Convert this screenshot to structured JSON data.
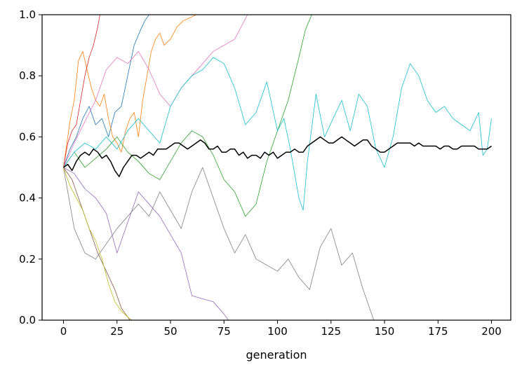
{
  "chart_data": {
    "type": "line",
    "title": "",
    "xlabel": "generation",
    "ylabel": "",
    "xlim": [
      -10,
      209
    ],
    "ylim": [
      0,
      1.0
    ],
    "grid": false,
    "legend": "none",
    "x_ticks": [
      0,
      25,
      50,
      75,
      100,
      125,
      150,
      175,
      200
    ],
    "y_ticks": [
      0.0,
      0.2,
      0.4,
      0.6,
      0.8,
      1.0
    ],
    "x_tick_labels": [
      "0",
      "25",
      "50",
      "75",
      "100",
      "125",
      "150",
      "175",
      "200"
    ],
    "y_tick_labels": [
      "0.0",
      "0.2",
      "0.4",
      "0.6",
      "0.8",
      "1.0"
    ],
    "series": [
      {
        "color": "#1f77b4",
        "x": [
          0,
          3,
          6,
          9,
          12,
          15,
          18,
          21,
          24,
          27,
          30,
          33,
          36,
          38,
          40
        ],
        "y": [
          0.5,
          0.56,
          0.6,
          0.66,
          0.7,
          0.64,
          0.66,
          0.6,
          0.68,
          0.7,
          0.8,
          0.9,
          0.95,
          0.98,
          1.0
        ]
      },
      {
        "color": "#ff7f0e",
        "x": [
          0,
          3,
          5,
          7,
          9,
          11,
          13,
          15,
          17,
          19,
          21,
          23,
          25,
          27,
          29,
          31,
          33,
          35,
          37,
          39,
          41,
          43,
          45,
          47,
          50,
          53,
          56,
          59,
          62,
          65,
          66
        ],
        "y": [
          0.5,
          0.65,
          0.72,
          0.85,
          0.88,
          0.82,
          0.76,
          0.72,
          0.7,
          0.74,
          0.66,
          0.6,
          0.58,
          0.55,
          0.62,
          0.66,
          0.68,
          0.6,
          0.72,
          0.8,
          0.88,
          0.92,
          0.94,
          0.9,
          0.92,
          0.96,
          0.98,
          0.99,
          1.0,
          1.0,
          1.0
        ]
      },
      {
        "color": "#2ca02c",
        "x": [
          0,
          5,
          10,
          15,
          20,
          25,
          30,
          35,
          40,
          45,
          50,
          55,
          60,
          65,
          70,
          75,
          80,
          85,
          90,
          95,
          100,
          105,
          110,
          113,
          116
        ],
        "y": [
          0.5,
          0.55,
          0.5,
          0.53,
          0.56,
          0.6,
          0.55,
          0.52,
          0.48,
          0.46,
          0.52,
          0.58,
          0.62,
          0.6,
          0.54,
          0.46,
          0.42,
          0.34,
          0.38,
          0.52,
          0.62,
          0.72,
          0.86,
          0.95,
          1.0
        ]
      },
      {
        "color": "#d62728",
        "x": [
          0,
          2,
          4,
          6,
          8,
          10,
          12,
          14,
          16,
          17
        ],
        "y": [
          0.5,
          0.58,
          0.62,
          0.64,
          0.72,
          0.8,
          0.86,
          0.9,
          0.96,
          1.0
        ]
      },
      {
        "color": "#9467bd",
        "x": [
          0,
          5,
          10,
          15,
          20,
          25,
          30,
          35,
          40,
          45,
          50,
          55,
          60,
          65,
          70,
          75,
          77
        ],
        "y": [
          0.5,
          0.48,
          0.43,
          0.4,
          0.35,
          0.22,
          0.32,
          0.42,
          0.38,
          0.34,
          0.28,
          0.22,
          0.08,
          0.07,
          0.06,
          0.02,
          0.0
        ]
      },
      {
        "color": "#8c564b",
        "x": [
          0,
          4,
          8,
          12,
          16,
          20,
          24,
          27,
          29,
          31
        ],
        "y": [
          0.5,
          0.46,
          0.38,
          0.3,
          0.22,
          0.16,
          0.1,
          0.04,
          0.02,
          0.0
        ]
      },
      {
        "color": "#e377c2",
        "x": [
          0,
          5,
          10,
          15,
          20,
          25,
          30,
          35,
          40,
          45,
          50,
          55,
          60,
          65,
          70,
          75,
          80,
          83,
          86
        ],
        "y": [
          0.5,
          0.58,
          0.65,
          0.72,
          0.82,
          0.86,
          0.84,
          0.88,
          0.82,
          0.74,
          0.7,
          0.76,
          0.8,
          0.84,
          0.88,
          0.9,
          0.92,
          0.96,
          1.0
        ]
      },
      {
        "color": "#7f7f7f",
        "x": [
          0,
          5,
          10,
          15,
          20,
          25,
          30,
          35,
          40,
          45,
          50,
          55,
          60,
          65,
          70,
          75,
          80,
          85,
          90,
          95,
          100,
          105,
          110,
          115,
          120,
          125,
          130,
          135,
          140,
          145
        ],
        "y": [
          0.5,
          0.3,
          0.22,
          0.2,
          0.25,
          0.3,
          0.34,
          0.38,
          0.34,
          0.42,
          0.36,
          0.3,
          0.42,
          0.5,
          0.4,
          0.3,
          0.22,
          0.28,
          0.2,
          0.18,
          0.16,
          0.2,
          0.14,
          0.1,
          0.24,
          0.3,
          0.18,
          0.22,
          0.1,
          0.0
        ]
      },
      {
        "color": "#bcbd22",
        "x": [
          0,
          3,
          6,
          9,
          12,
          15,
          18,
          21,
          24,
          27,
          30,
          32
        ],
        "y": [
          0.5,
          0.44,
          0.4,
          0.36,
          0.3,
          0.26,
          0.2,
          0.12,
          0.06,
          0.03,
          0.01,
          0.0
        ]
      },
      {
        "color": "#17becf",
        "x": [
          0,
          5,
          10,
          15,
          20,
          25,
          30,
          35,
          40,
          45,
          50,
          55,
          60,
          65,
          70,
          75,
          80,
          85,
          90,
          95,
          100,
          103,
          106,
          110,
          112,
          114,
          118,
          122,
          126,
          130,
          134,
          138,
          142,
          146,
          150,
          154,
          158,
          162,
          166,
          170,
          174,
          178,
          182,
          186,
          190,
          194,
          196,
          198,
          200
        ],
        "y": [
          0.5,
          0.55,
          0.58,
          0.56,
          0.6,
          0.56,
          0.62,
          0.66,
          0.62,
          0.58,
          0.7,
          0.76,
          0.8,
          0.82,
          0.86,
          0.84,
          0.76,
          0.64,
          0.68,
          0.78,
          0.62,
          0.66,
          0.56,
          0.4,
          0.36,
          0.52,
          0.74,
          0.6,
          0.66,
          0.72,
          0.62,
          0.74,
          0.7,
          0.56,
          0.5,
          0.6,
          0.76,
          0.84,
          0.8,
          0.72,
          0.68,
          0.7,
          0.66,
          0.64,
          0.62,
          0.68,
          0.54,
          0.56,
          0.66
        ]
      }
    ],
    "mean_series": {
      "color": "#000000",
      "x": [
        0,
        2,
        4,
        6,
        8,
        10,
        12,
        14,
        16,
        18,
        20,
        22,
        24,
        26,
        28,
        30,
        32,
        34,
        36,
        38,
        40,
        42,
        44,
        46,
        48,
        50,
        52,
        54,
        56,
        58,
        60,
        62,
        64,
        66,
        68,
        70,
        72,
        74,
        76,
        78,
        80,
        82,
        84,
        86,
        88,
        90,
        92,
        94,
        96,
        98,
        100,
        102,
        104,
        106,
        108,
        110,
        112,
        114,
        116,
        118,
        120,
        122,
        124,
        126,
        128,
        130,
        132,
        134,
        136,
        138,
        140,
        142,
        144,
        146,
        148,
        150,
        152,
        154,
        156,
        158,
        160,
        162,
        164,
        166,
        168,
        170,
        172,
        174,
        176,
        178,
        180,
        182,
        184,
        186,
        188,
        190,
        192,
        194,
        196,
        198,
        200
      ],
      "y": [
        0.5,
        0.51,
        0.49,
        0.52,
        0.54,
        0.55,
        0.54,
        0.56,
        0.55,
        0.53,
        0.54,
        0.52,
        0.49,
        0.47,
        0.5,
        0.52,
        0.54,
        0.54,
        0.53,
        0.54,
        0.55,
        0.54,
        0.56,
        0.56,
        0.56,
        0.57,
        0.58,
        0.58,
        0.57,
        0.56,
        0.57,
        0.58,
        0.59,
        0.58,
        0.56,
        0.56,
        0.57,
        0.55,
        0.55,
        0.56,
        0.56,
        0.54,
        0.55,
        0.53,
        0.54,
        0.54,
        0.53,
        0.55,
        0.54,
        0.55,
        0.53,
        0.54,
        0.55,
        0.55,
        0.56,
        0.55,
        0.55,
        0.57,
        0.58,
        0.59,
        0.6,
        0.59,
        0.58,
        0.58,
        0.59,
        0.6,
        0.59,
        0.58,
        0.57,
        0.58,
        0.59,
        0.59,
        0.57,
        0.56,
        0.55,
        0.55,
        0.56,
        0.57,
        0.58,
        0.58,
        0.58,
        0.58,
        0.57,
        0.58,
        0.57,
        0.57,
        0.57,
        0.57,
        0.56,
        0.57,
        0.57,
        0.56,
        0.56,
        0.57,
        0.57,
        0.57,
        0.57,
        0.56,
        0.56,
        0.56,
        0.57
      ]
    }
  }
}
